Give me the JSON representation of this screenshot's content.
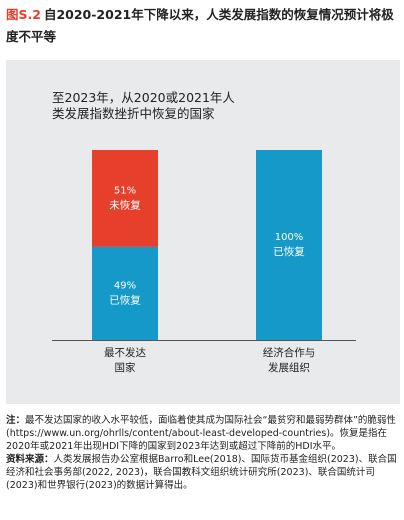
{
  "figure": {
    "label": "图S.2",
    "title": "自2020-2021年下降以来，人类发展指数的恢复情况预计将极度不平等"
  },
  "chart_data": {
    "type": "bar",
    "stacked": true,
    "title_line1": "至2023年，从2020或2021年人",
    "title_line2": "类发展指数挫折中恢复的国家",
    "categories": [
      {
        "line1": "最不发达",
        "line2": "国家"
      },
      {
        "line1": "经济合作与",
        "line2": "发展组织"
      }
    ],
    "series": [
      {
        "name": "已恢复",
        "color": "#1599c9",
        "values": [
          49,
          100
        ]
      },
      {
        "name": "未恢复",
        "color": "#e6402c",
        "values": [
          51,
          0
        ]
      }
    ],
    "value_suffix": "%",
    "ylim": [
      0,
      100
    ],
    "grid": false,
    "legend": "none"
  },
  "notes": {
    "note_label": "注：",
    "note_text": "最不发达国家的收入水平较低，面临着使其成为国际社会“最贫穷和最弱势群体”的脆弱性(https://www.un.org/ohrlls/content/about-least-developed-countries)。恢复是指在2020年或2021年出现HDI下降的国家到2023年达到或超过下降前的HDI水平。",
    "source_label": "资料来源：",
    "source_text": "人类发展报告办公室根据Barro和Lee(2018)、国际货币基金组织(2023)、联合国经济和社会事务部(2022, 2023)，联合国教科文组织统计研究所(2023)、联合国统计司(2023)和世界银行(2023)的数据计算得出。"
  }
}
